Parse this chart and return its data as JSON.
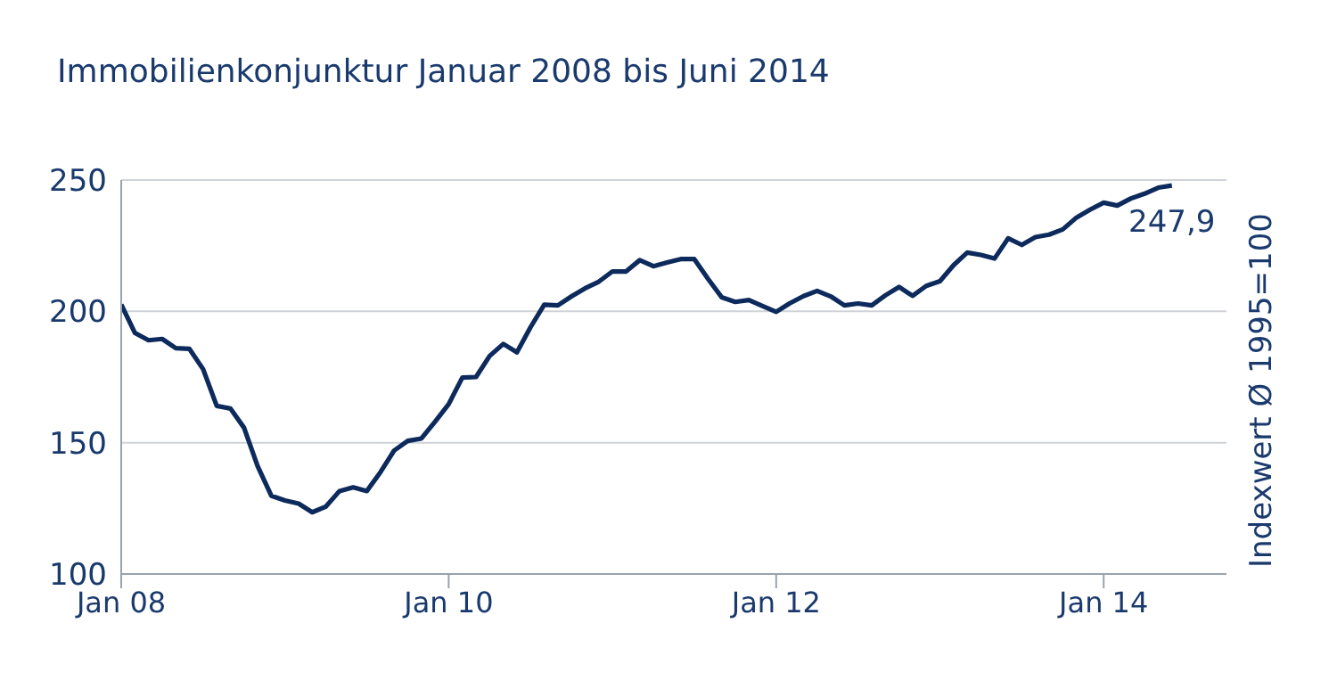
{
  "chart_data": {
    "type": "line",
    "title": "Immobilienkonjunktur Januar 2008 bis Juni 2014",
    "ylabel": "Indexwert Ø 1995=100",
    "x": [
      "2008-01",
      "2008-02",
      "2008-03",
      "2008-04",
      "2008-05",
      "2008-06",
      "2008-07",
      "2008-08",
      "2008-09",
      "2008-10",
      "2008-11",
      "2008-12",
      "2009-01",
      "2009-02",
      "2009-03",
      "2009-04",
      "2009-05",
      "2009-06",
      "2009-07",
      "2009-08",
      "2009-09",
      "2009-10",
      "2009-11",
      "2009-12",
      "2010-01",
      "2010-02",
      "2010-03",
      "2010-04",
      "2010-05",
      "2010-06",
      "2010-07",
      "2010-08",
      "2010-09",
      "2010-10",
      "2010-11",
      "2010-12",
      "2011-01",
      "2011-02",
      "2011-03",
      "2011-04",
      "2011-05",
      "2011-06",
      "2011-07",
      "2011-08",
      "2011-09",
      "2011-10",
      "2011-11",
      "2011-12",
      "2012-01",
      "2012-02",
      "2012-03",
      "2012-04",
      "2012-05",
      "2012-06",
      "2012-07",
      "2012-08",
      "2012-09",
      "2012-10",
      "2012-11",
      "2012-12",
      "2013-01",
      "2013-02",
      "2013-03",
      "2013-04",
      "2013-05",
      "2013-06",
      "2013-07",
      "2013-08",
      "2013-09",
      "2013-10",
      "2013-11",
      "2013-12",
      "2014-01",
      "2014-02",
      "2014-03",
      "2014-04",
      "2014-05",
      "2014-06"
    ],
    "series": [
      {
        "color": "#0d2a5c",
        "values": [
          202.6,
          191.8,
          189,
          189.5,
          186,
          185.7,
          178,
          164,
          163,
          155.7,
          141,
          129.8,
          128,
          126.8,
          123.5,
          125.7,
          131.6,
          133,
          131.6,
          138.8,
          147,
          150.7,
          151.6,
          158,
          164.7,
          174.8,
          175,
          183,
          187.6,
          184.4,
          194,
          202.5,
          202.3,
          205.7,
          208.8,
          211.3,
          215.2,
          215.2,
          219.5,
          217.2,
          218.6,
          219.9,
          219.9,
          212.4,
          205.4,
          203.6,
          204.3,
          202,
          199.8,
          203.1,
          205.8,
          207.8,
          205.7,
          202.3,
          203,
          202.3,
          206.1,
          209.3,
          205.9,
          209.7,
          211.5,
          217.6,
          222.4,
          221.5,
          220.1,
          227.8,
          225.3,
          228.3,
          229.2,
          231.2,
          235.7,
          238.7,
          241.4,
          240.3,
          243,
          244.8,
          247.1,
          247.9
        ]
      }
    ],
    "xlim": [
      "2008-01",
      "2014-10"
    ],
    "xticks": [
      {
        "value": "2008-01",
        "label": "Jan 08"
      },
      {
        "value": "2010-01",
        "label": "Jan 10"
      },
      {
        "value": "2012-01",
        "label": "Jan 12"
      },
      {
        "value": "2014-01",
        "label": "Jan 14"
      }
    ],
    "ylim": [
      100,
      250
    ],
    "yticks": [
      100,
      150,
      200,
      250
    ],
    "grid": "y",
    "line_style": "solid",
    "marker": "none",
    "annotations": [
      {
        "text": "247,9",
        "x": "2014-06",
        "y": 247.9
      }
    ]
  }
}
